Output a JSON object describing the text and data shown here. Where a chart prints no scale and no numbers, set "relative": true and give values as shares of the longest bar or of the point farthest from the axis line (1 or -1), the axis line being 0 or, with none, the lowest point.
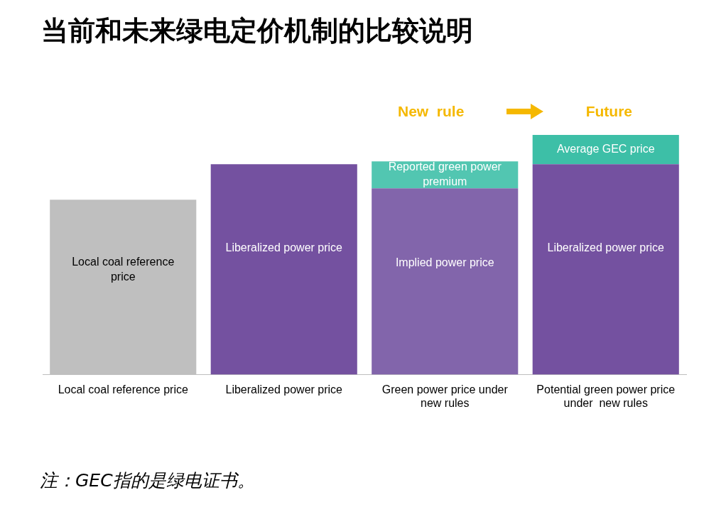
{
  "chart_data": {
    "type": "bar",
    "title": "当前和未来绿电定价机制的比较说明",
    "stacked": true,
    "relative": true,
    "legend": false,
    "grid": false,
    "categories": [
      "Local coal reference price",
      "Liberalized power price",
      "Green power price under new rules",
      "Potential green power price under  new rules"
    ],
    "series": [
      {
        "name": "Local coal reference price",
        "color": "#bfbfbf",
        "values": [
          0.73,
          null,
          null,
          null
        ]
      },
      {
        "name": "Liberalized power price",
        "color": "#7451a0",
        "values": [
          null,
          0.878,
          null,
          0.878
        ]
      },
      {
        "name": "Implied power price",
        "color": "#8265ab",
        "values": [
          null,
          null,
          0.777,
          null
        ]
      },
      {
        "name": "Reported green power premium",
        "color": "#52c6b1",
        "values": [
          null,
          null,
          0.113,
          null
        ]
      },
      {
        "name": "Average GEC price",
        "color": "#3dbfa7",
        "values": [
          null,
          null,
          null,
          0.122
        ]
      }
    ],
    "annotations": [
      "New  rule",
      "Future",
      "注：GEC指的是绿电证书。"
    ]
  }
}
